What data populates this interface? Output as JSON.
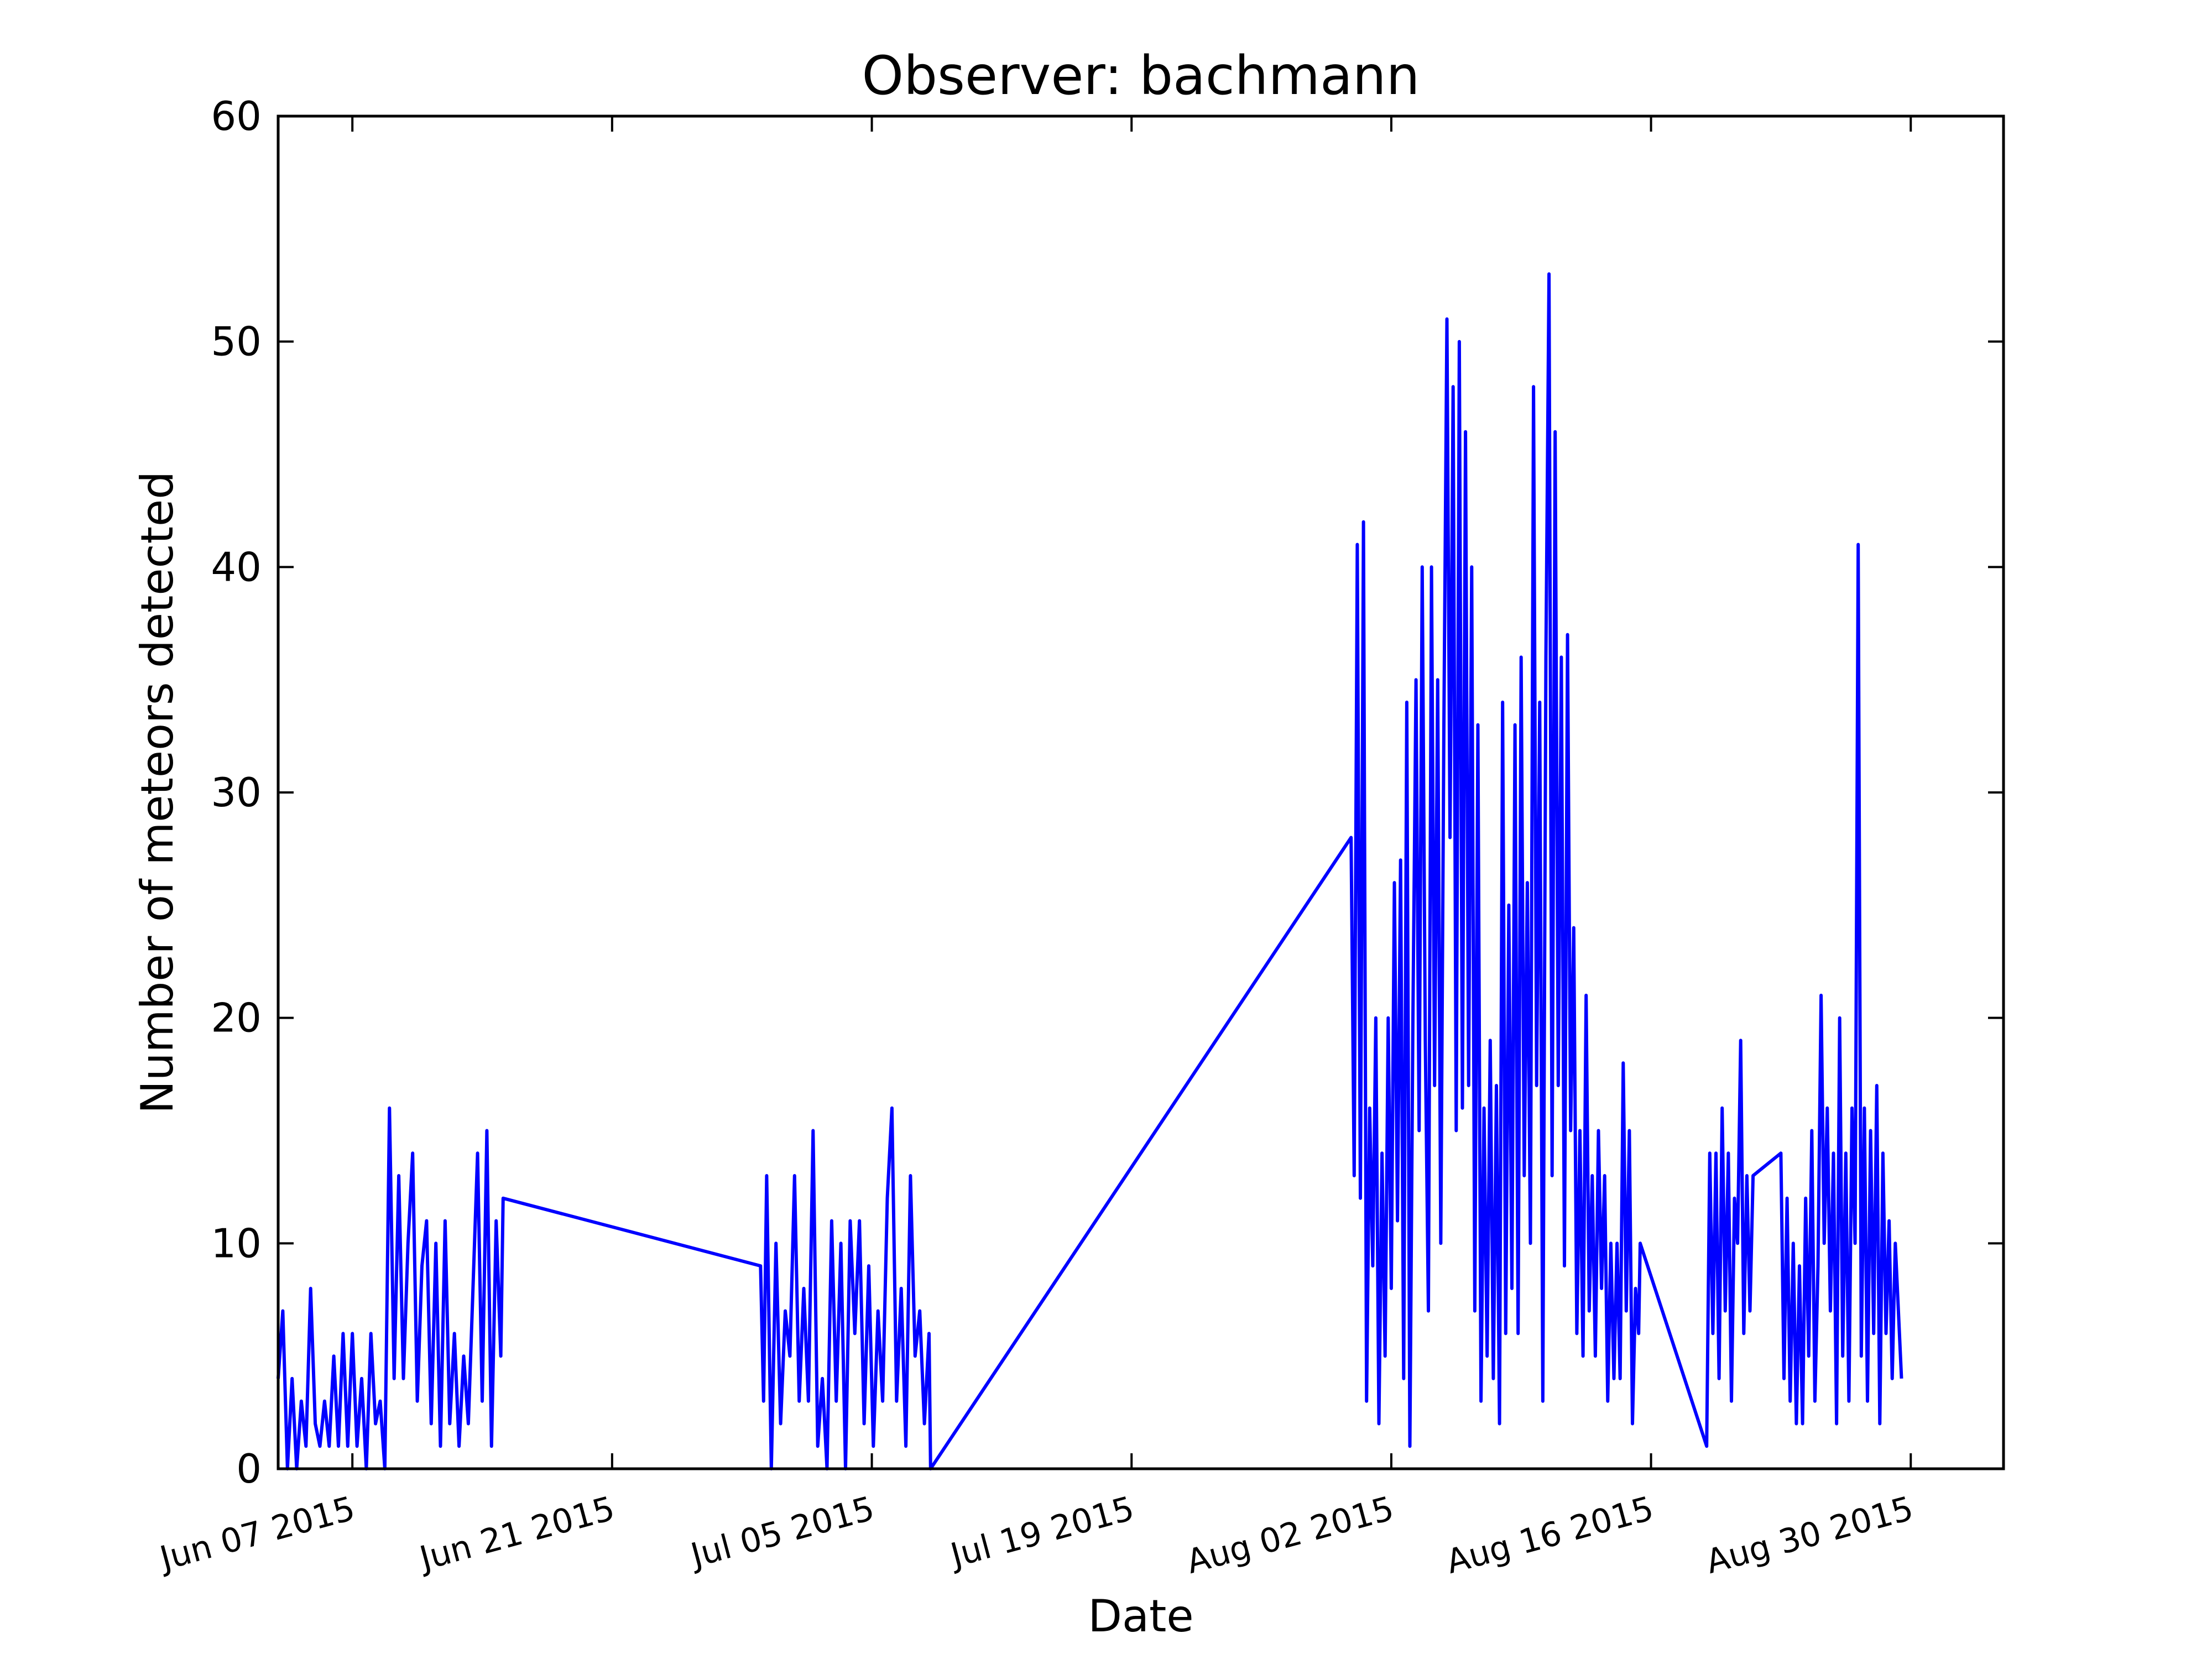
{
  "chart_data": {
    "type": "line",
    "title": "Observer: bachmann",
    "xlabel": "Date",
    "ylabel": "Number of meteors detected",
    "xlim": [
      "2015-06-03",
      "2015-09-04"
    ],
    "ylim": [
      0,
      60
    ],
    "yticks": [
      0,
      10,
      20,
      30,
      40,
      50,
      60
    ],
    "xticks": [
      {
        "date": "2015-06-07",
        "label": "Jun 07 2015"
      },
      {
        "date": "2015-06-21",
        "label": "Jun 21 2015"
      },
      {
        "date": "2015-07-05",
        "label": "Jul 05 2015"
      },
      {
        "date": "2015-07-19",
        "label": "Jul 19 2015"
      },
      {
        "date": "2015-08-02",
        "label": "Aug 02 2015"
      },
      {
        "date": "2015-08-16",
        "label": "Aug 16 2015"
      },
      {
        "date": "2015-08-30",
        "label": "Aug 30 2015"
      }
    ],
    "grid": false,
    "line_color": "#0000ff",
    "series": [
      {
        "values": [
          [
            "2015-06-03 00:00",
            4
          ],
          [
            "2015-06-03 06:00",
            7
          ],
          [
            "2015-06-03 12:00",
            0
          ],
          [
            "2015-06-03 18:00",
            4
          ],
          [
            "2015-06-04 00:00",
            0
          ],
          [
            "2015-06-04 06:00",
            3
          ],
          [
            "2015-06-04 12:00",
            1
          ],
          [
            "2015-06-04 18:00",
            8
          ],
          [
            "2015-06-05 00:00",
            2
          ],
          [
            "2015-06-05 06:00",
            1
          ],
          [
            "2015-06-05 12:00",
            3
          ],
          [
            "2015-06-05 18:00",
            1
          ],
          [
            "2015-06-06 00:00",
            5
          ],
          [
            "2015-06-06 06:00",
            1
          ],
          [
            "2015-06-06 12:00",
            6
          ],
          [
            "2015-06-06 18:00",
            1
          ],
          [
            "2015-06-07 00:00",
            6
          ],
          [
            "2015-06-07 06:00",
            1
          ],
          [
            "2015-06-07 12:00",
            4
          ],
          [
            "2015-06-07 18:00",
            0
          ],
          [
            "2015-06-08 00:00",
            6
          ],
          [
            "2015-06-08 06:00",
            2
          ],
          [
            "2015-06-08 12:00",
            3
          ],
          [
            "2015-06-08 18:00",
            0
          ],
          [
            "2015-06-09 00:00",
            16
          ],
          [
            "2015-06-09 06:00",
            4
          ],
          [
            "2015-06-09 12:00",
            13
          ],
          [
            "2015-06-09 18:00",
            4
          ],
          [
            "2015-06-10 00:00",
            10
          ],
          [
            "2015-06-10 06:00",
            14
          ],
          [
            "2015-06-10 12:00",
            3
          ],
          [
            "2015-06-10 18:00",
            9
          ],
          [
            "2015-06-11 00:00",
            11
          ],
          [
            "2015-06-11 06:00",
            2
          ],
          [
            "2015-06-11 12:00",
            10
          ],
          [
            "2015-06-11 18:00",
            1
          ],
          [
            "2015-06-12 00:00",
            11
          ],
          [
            "2015-06-12 06:00",
            2
          ],
          [
            "2015-06-12 12:00",
            6
          ],
          [
            "2015-06-12 18:00",
            1
          ],
          [
            "2015-06-13 00:00",
            5
          ],
          [
            "2015-06-13 06:00",
            2
          ],
          [
            "2015-06-13 12:00",
            8
          ],
          [
            "2015-06-13 18:00",
            14
          ],
          [
            "2015-06-14 00:00",
            3
          ],
          [
            "2015-06-14 06:00",
            15
          ],
          [
            "2015-06-14 12:00",
            1
          ],
          [
            "2015-06-14 18:00",
            11
          ],
          [
            "2015-06-15 00:00",
            5
          ],
          [
            "2015-06-15 03:00",
            12
          ],
          [
            "2015-06-29 00:00",
            9
          ],
          [
            "2015-06-29 04:00",
            3
          ],
          [
            "2015-06-29 08:00",
            13
          ],
          [
            "2015-06-29 14:00",
            0
          ],
          [
            "2015-06-29 20:00",
            10
          ],
          [
            "2015-06-30 02:00",
            2
          ],
          [
            "2015-06-30 08:00",
            7
          ],
          [
            "2015-06-30 14:00",
            5
          ],
          [
            "2015-06-30 20:00",
            13
          ],
          [
            "2015-07-01 02:00",
            3
          ],
          [
            "2015-07-01 08:00",
            8
          ],
          [
            "2015-07-01 14:00",
            3
          ],
          [
            "2015-07-01 20:00",
            15
          ],
          [
            "2015-07-02 02:00",
            1
          ],
          [
            "2015-07-02 08:00",
            4
          ],
          [
            "2015-07-02 14:00",
            0
          ],
          [
            "2015-07-02 20:00",
            11
          ],
          [
            "2015-07-03 02:00",
            3
          ],
          [
            "2015-07-03 08:00",
            10
          ],
          [
            "2015-07-03 14:00",
            0
          ],
          [
            "2015-07-03 20:00",
            11
          ],
          [
            "2015-07-04 02:00",
            6
          ],
          [
            "2015-07-04 08:00",
            11
          ],
          [
            "2015-07-04 14:00",
            2
          ],
          [
            "2015-07-04 20:00",
            9
          ],
          [
            "2015-07-05 02:00",
            1
          ],
          [
            "2015-07-05 08:00",
            7
          ],
          [
            "2015-07-05 14:00",
            3
          ],
          [
            "2015-07-05 20:00",
            12
          ],
          [
            "2015-07-06 02:00",
            16
          ],
          [
            "2015-07-06 08:00",
            3
          ],
          [
            "2015-07-06 14:00",
            8
          ],
          [
            "2015-07-06 20:00",
            1
          ],
          [
            "2015-07-07 02:00",
            13
          ],
          [
            "2015-07-07 08:00",
            5
          ],
          [
            "2015-07-07 14:00",
            7
          ],
          [
            "2015-07-07 20:00",
            2
          ],
          [
            "2015-07-08 02:00",
            6
          ],
          [
            "2015-07-08 04:00",
            0
          ],
          [
            "2015-07-30 20:00",
            28
          ],
          [
            "2015-07-31 00:00",
            13
          ],
          [
            "2015-07-31 04:00",
            41
          ],
          [
            "2015-07-31 08:00",
            12
          ],
          [
            "2015-07-31 12:00",
            42
          ],
          [
            "2015-07-31 16:00",
            3
          ],
          [
            "2015-07-31 20:00",
            16
          ],
          [
            "2015-08-01 00:00",
            9
          ],
          [
            "2015-08-01 04:00",
            20
          ],
          [
            "2015-08-01 08:00",
            2
          ],
          [
            "2015-08-01 12:00",
            14
          ],
          [
            "2015-08-01 16:00",
            5
          ],
          [
            "2015-08-01 20:00",
            20
          ],
          [
            "2015-08-02 00:00",
            8
          ],
          [
            "2015-08-02 04:00",
            26
          ],
          [
            "2015-08-02 08:00",
            11
          ],
          [
            "2015-08-02 12:00",
            27
          ],
          [
            "2015-08-02 16:00",
            4
          ],
          [
            "2015-08-02 20:00",
            34
          ],
          [
            "2015-08-03 00:00",
            1
          ],
          [
            "2015-08-03 04:00",
            20
          ],
          [
            "2015-08-03 08:00",
            35
          ],
          [
            "2015-08-03 12:00",
            15
          ],
          [
            "2015-08-03 16:00",
            40
          ],
          [
            "2015-08-03 20:00",
            19
          ],
          [
            "2015-08-04 00:00",
            7
          ],
          [
            "2015-08-04 04:00",
            40
          ],
          [
            "2015-08-04 08:00",
            17
          ],
          [
            "2015-08-04 12:00",
            35
          ],
          [
            "2015-08-04 16:00",
            10
          ],
          [
            "2015-08-04 20:00",
            33
          ],
          [
            "2015-08-05 00:00",
            51
          ],
          [
            "2015-08-05 04:00",
            28
          ],
          [
            "2015-08-05 08:00",
            48
          ],
          [
            "2015-08-05 12:00",
            15
          ],
          [
            "2015-08-05 16:00",
            50
          ],
          [
            "2015-08-05 20:00",
            16
          ],
          [
            "2015-08-06 00:00",
            46
          ],
          [
            "2015-08-06 04:00",
            17
          ],
          [
            "2015-08-06 08:00",
            40
          ],
          [
            "2015-08-06 12:00",
            7
          ],
          [
            "2015-08-06 16:00",
            33
          ],
          [
            "2015-08-06 20:00",
            3
          ],
          [
            "2015-08-07 00:00",
            16
          ],
          [
            "2015-08-07 04:00",
            5
          ],
          [
            "2015-08-07 08:00",
            19
          ],
          [
            "2015-08-07 12:00",
            4
          ],
          [
            "2015-08-07 16:00",
            17
          ],
          [
            "2015-08-07 20:00",
            2
          ],
          [
            "2015-08-08 00:00",
            34
          ],
          [
            "2015-08-08 04:00",
            6
          ],
          [
            "2015-08-08 08:00",
            25
          ],
          [
            "2015-08-08 12:00",
            8
          ],
          [
            "2015-08-08 16:00",
            33
          ],
          [
            "2015-08-08 20:00",
            6
          ],
          [
            "2015-08-09 00:00",
            36
          ],
          [
            "2015-08-09 04:00",
            13
          ],
          [
            "2015-08-09 08:00",
            26
          ],
          [
            "2015-08-09 12:00",
            10
          ],
          [
            "2015-08-09 16:00",
            48
          ],
          [
            "2015-08-09 20:00",
            17
          ],
          [
            "2015-08-10 00:00",
            34
          ],
          [
            "2015-08-10 04:00",
            3
          ],
          [
            "2015-08-10 08:00",
            36
          ],
          [
            "2015-08-10 12:00",
            53
          ],
          [
            "2015-08-10 16:00",
            13
          ],
          [
            "2015-08-10 20:00",
            46
          ],
          [
            "2015-08-11 00:00",
            17
          ],
          [
            "2015-08-11 04:00",
            36
          ],
          [
            "2015-08-11 08:00",
            9
          ],
          [
            "2015-08-11 12:00",
            37
          ],
          [
            "2015-08-11 16:00",
            15
          ],
          [
            "2015-08-11 20:00",
            24
          ],
          [
            "2015-08-12 00:00",
            6
          ],
          [
            "2015-08-12 04:00",
            15
          ],
          [
            "2015-08-12 08:00",
            5
          ],
          [
            "2015-08-12 12:00",
            21
          ],
          [
            "2015-08-12 16:00",
            7
          ],
          [
            "2015-08-12 20:00",
            13
          ],
          [
            "2015-08-13 00:00",
            5
          ],
          [
            "2015-08-13 04:00",
            15
          ],
          [
            "2015-08-13 08:00",
            8
          ],
          [
            "2015-08-13 12:00",
            13
          ],
          [
            "2015-08-13 16:00",
            3
          ],
          [
            "2015-08-13 20:00",
            10
          ],
          [
            "2015-08-14 00:00",
            4
          ],
          [
            "2015-08-14 04:00",
            10
          ],
          [
            "2015-08-14 08:00",
            4
          ],
          [
            "2015-08-14 12:00",
            18
          ],
          [
            "2015-08-14 16:00",
            7
          ],
          [
            "2015-08-14 20:00",
            15
          ],
          [
            "2015-08-15 00:00",
            2
          ],
          [
            "2015-08-15 04:00",
            8
          ],
          [
            "2015-08-15 08:00",
            6
          ],
          [
            "2015-08-15 10:00",
            10
          ],
          [
            "2015-08-19 00:00",
            1
          ],
          [
            "2015-08-19 04:00",
            14
          ],
          [
            "2015-08-19 08:00",
            6
          ],
          [
            "2015-08-19 12:00",
            14
          ],
          [
            "2015-08-19 16:00",
            4
          ],
          [
            "2015-08-19 20:00",
            16
          ],
          [
            "2015-08-20 00:00",
            7
          ],
          [
            "2015-08-20 04:00",
            14
          ],
          [
            "2015-08-20 08:00",
            3
          ],
          [
            "2015-08-20 12:00",
            12
          ],
          [
            "2015-08-20 16:00",
            10
          ],
          [
            "2015-08-20 20:00",
            19
          ],
          [
            "2015-08-21 00:00",
            6
          ],
          [
            "2015-08-21 04:00",
            13
          ],
          [
            "2015-08-21 08:00",
            7
          ],
          [
            "2015-08-21 12:00",
            13
          ],
          [
            "2015-08-23 00:00",
            14
          ],
          [
            "2015-08-23 04:00",
            4
          ],
          [
            "2015-08-23 08:00",
            12
          ],
          [
            "2015-08-23 12:00",
            3
          ],
          [
            "2015-08-23 16:00",
            10
          ],
          [
            "2015-08-23 20:00",
            2
          ],
          [
            "2015-08-24 00:00",
            9
          ],
          [
            "2015-08-24 04:00",
            2
          ],
          [
            "2015-08-24 08:00",
            12
          ],
          [
            "2015-08-24 12:00",
            5
          ],
          [
            "2015-08-24 16:00",
            15
          ],
          [
            "2015-08-24 20:00",
            3
          ],
          [
            "2015-08-25 00:00",
            9
          ],
          [
            "2015-08-25 04:00",
            21
          ],
          [
            "2015-08-25 08:00",
            10
          ],
          [
            "2015-08-25 12:00",
            16
          ],
          [
            "2015-08-25 16:00",
            7
          ],
          [
            "2015-08-25 20:00",
            14
          ],
          [
            "2015-08-26 00:00",
            2
          ],
          [
            "2015-08-26 04:00",
            20
          ],
          [
            "2015-08-26 08:00",
            5
          ],
          [
            "2015-08-26 12:00",
            14
          ],
          [
            "2015-08-26 16:00",
            3
          ],
          [
            "2015-08-26 20:00",
            16
          ],
          [
            "2015-08-27 00:00",
            10
          ],
          [
            "2015-08-27 04:00",
            41
          ],
          [
            "2015-08-27 08:00",
            5
          ],
          [
            "2015-08-27 12:00",
            16
          ],
          [
            "2015-08-27 16:00",
            3
          ],
          [
            "2015-08-27 20:00",
            15
          ],
          [
            "2015-08-28 00:00",
            6
          ],
          [
            "2015-08-28 04:00",
            17
          ],
          [
            "2015-08-28 08:00",
            2
          ],
          [
            "2015-08-28 12:00",
            14
          ],
          [
            "2015-08-28 16:00",
            6
          ],
          [
            "2015-08-28 20:00",
            11
          ],
          [
            "2015-08-29 00:00",
            4
          ],
          [
            "2015-08-29 04:00",
            10
          ],
          [
            "2015-08-29 12:00",
            4
          ]
        ]
      }
    ]
  }
}
